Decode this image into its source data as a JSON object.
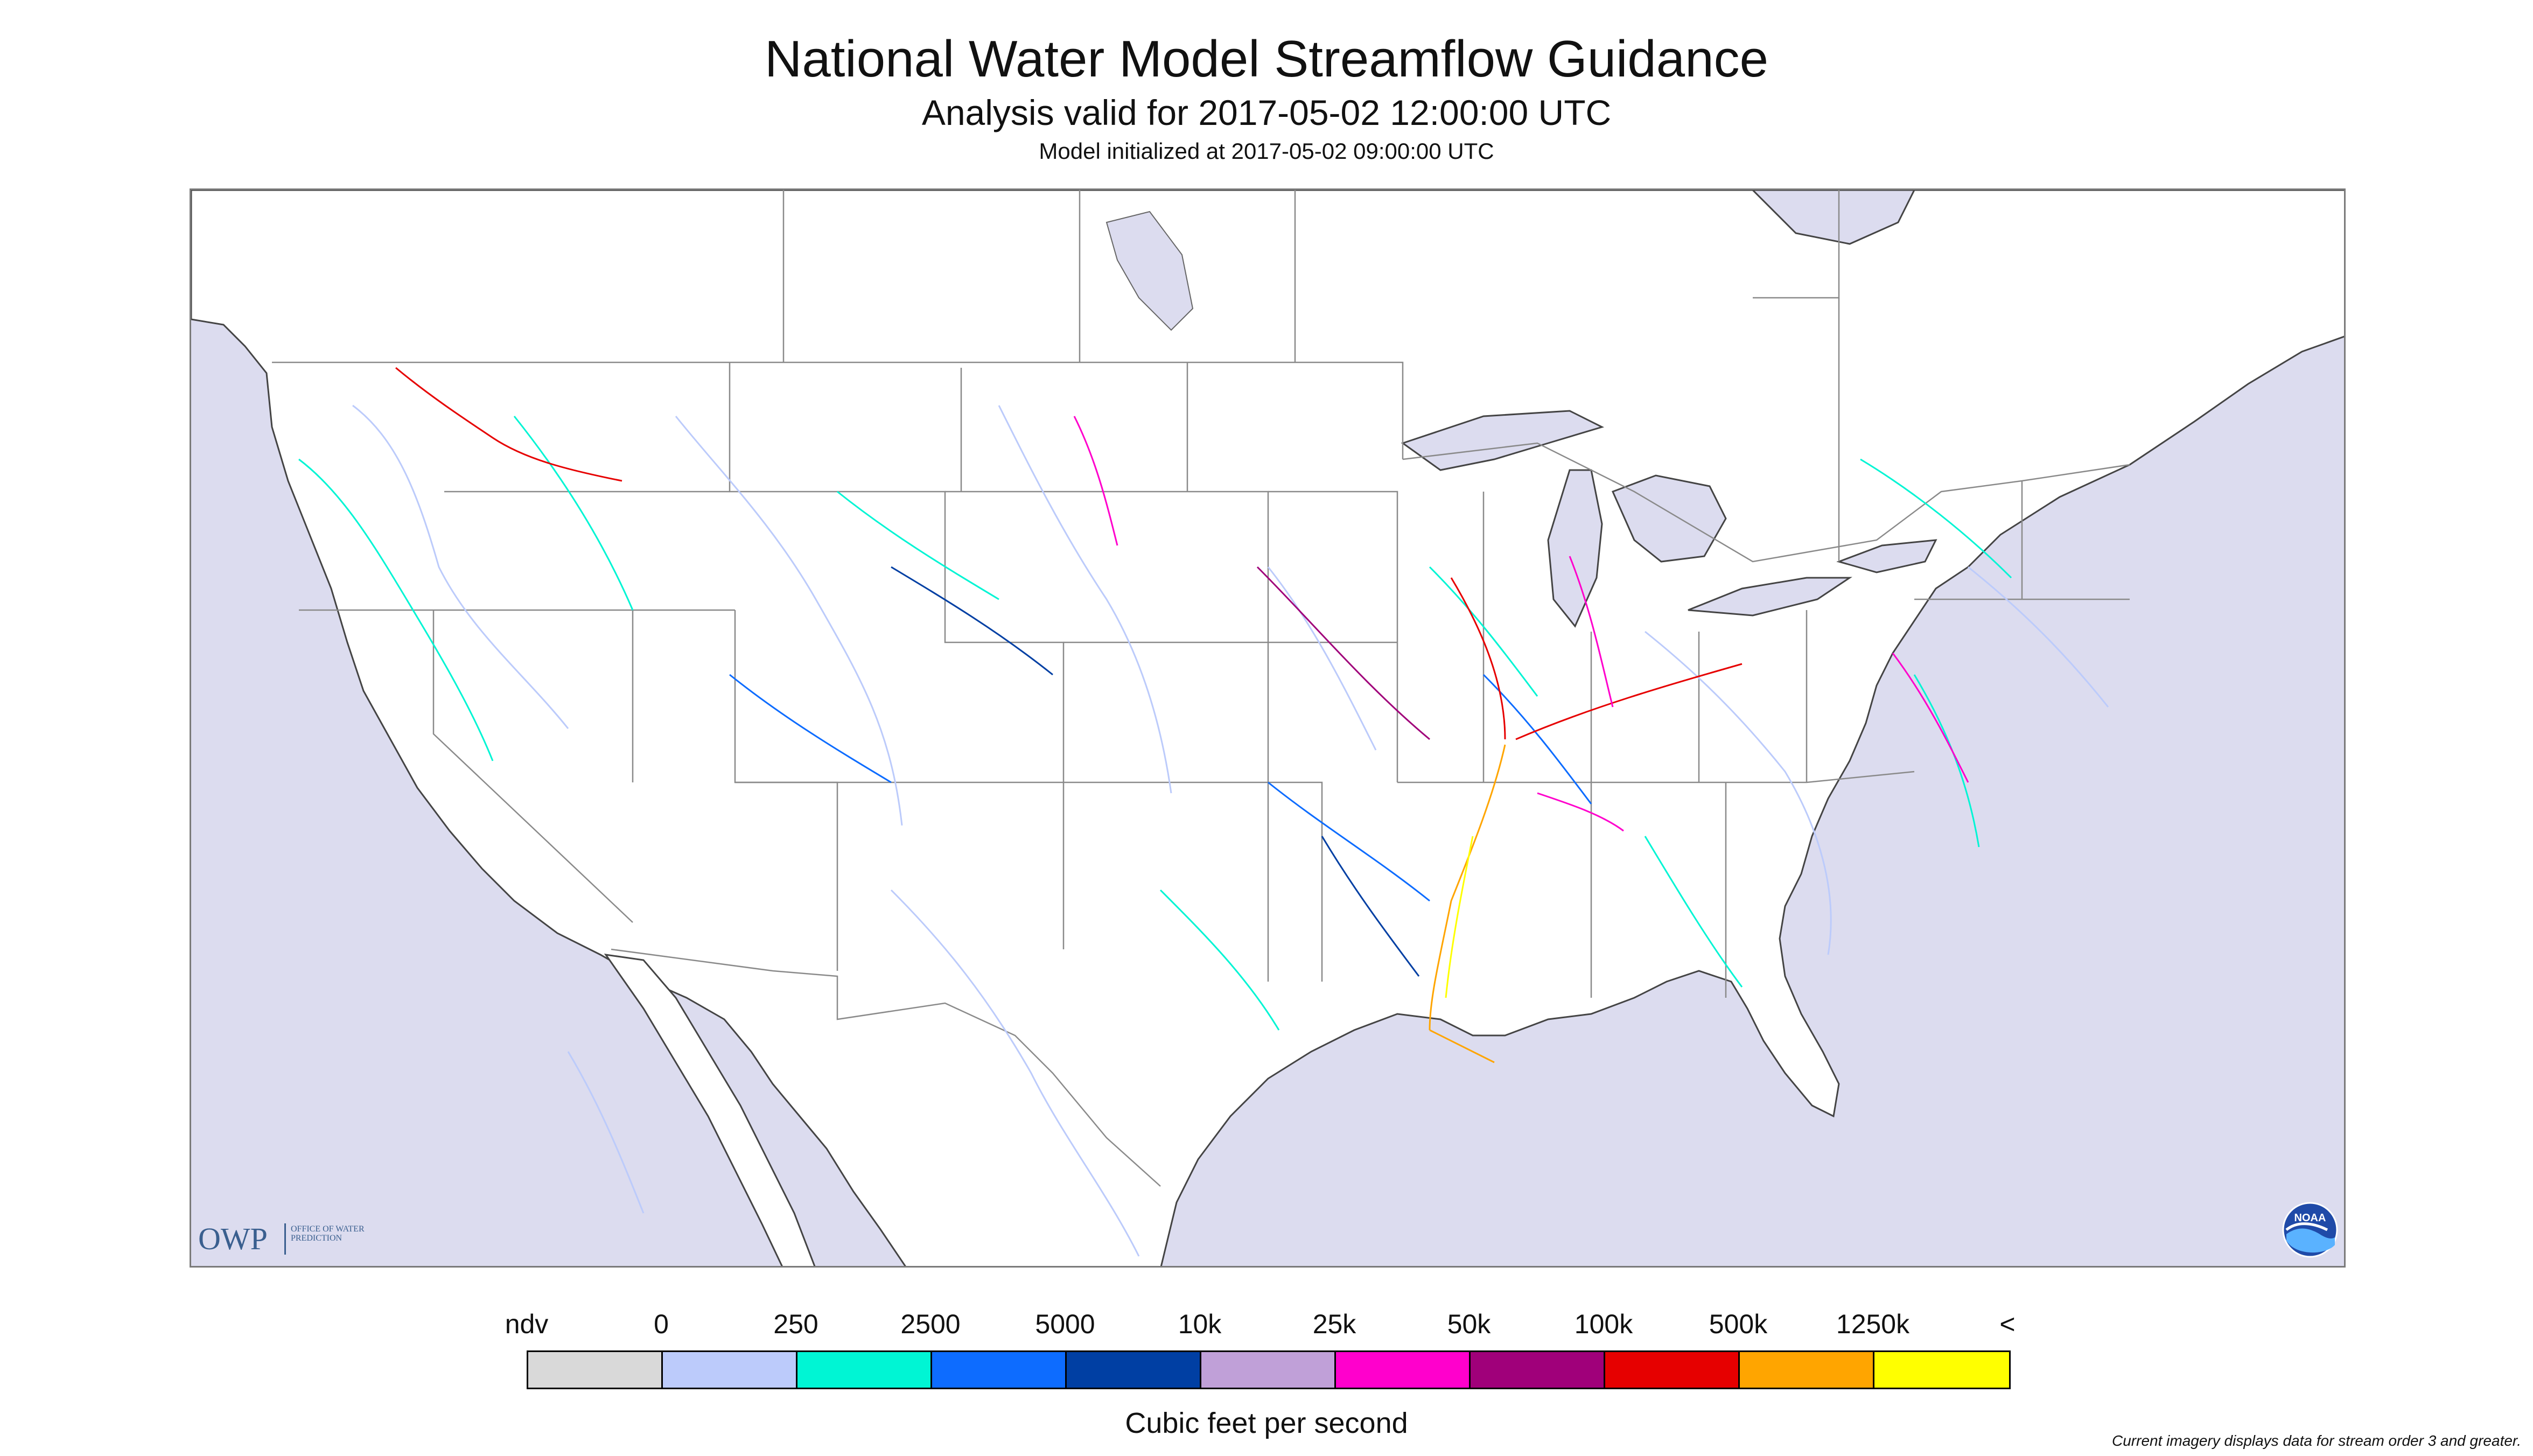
{
  "title": "National Water Model Streamflow Guidance",
  "subtitle": "Analysis valid for 2017-05-02 12:00:00 UTC",
  "initialized": "Model initialized at 2017-05-02 09:00:00 UTC",
  "legend": {
    "title": "Cubic feet per second",
    "labels": [
      "ndv",
      "0",
      "250",
      "2500",
      "5000",
      "10k",
      "25k",
      "50k",
      "100k",
      "500k",
      "1250k",
      "<"
    ],
    "colors": [
      "#d9d9d9",
      "#bccbfb",
      "#00f5d4",
      "#0d6cff",
      "#003fa3",
      "#c0a0d8",
      "#ff00cc",
      "#a0007a",
      "#e60000",
      "#ffa500",
      "#ffff00"
    ]
  },
  "footnote": "Current imagery displays data for stream order 3 and greater.",
  "logos": {
    "owp_word": "OWP",
    "owp_sub": "OFFICE OF WATER PREDICTION",
    "noaa": "NOAA"
  },
  "map": {
    "ocean_color": "#dcdcef",
    "land_color": "#ffffff",
    "border_color": "#888888"
  }
}
